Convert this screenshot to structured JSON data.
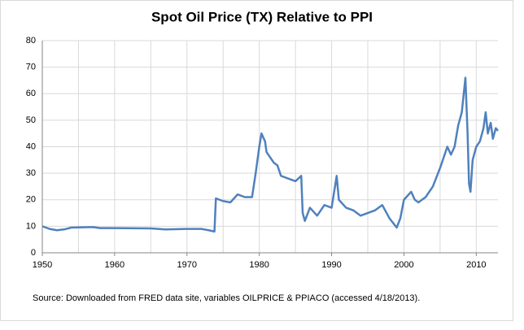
{
  "chart_data": {
    "type": "line",
    "title": "Spot Oil Price (TX) Relative to PPI",
    "source": "Source:  Downloaded from FRED data site, variables OILPRICE & PPIACO (accessed 4/18/2013).",
    "series": [
      {
        "color": "#4f81bd",
        "x": [
          1950,
          1951,
          1952,
          1953,
          1954,
          1957,
          1958,
          1960,
          1965,
          1967,
          1970,
          1972,
          1973,
          1973.8,
          1974,
          1975,
          1976,
          1977,
          1978,
          1979,
          1979.5,
          1980,
          1980.3,
          1980.8,
          1981,
          1981.5,
          1982,
          1982.5,
          1983,
          1984,
          1985,
          1985.8,
          1986,
          1986.3,
          1987,
          1988,
          1988.5,
          1989,
          1990,
          1990.7,
          1991,
          1992,
          1993,
          1994,
          1995,
          1996,
          1997,
          1998,
          1999,
          1999.5,
          2000,
          2001,
          2001.5,
          2002,
          2003,
          2004,
          2005,
          2006,
          2006.5,
          2007,
          2007.5,
          2008,
          2008.5,
          2008.8,
          2009,
          2009.2,
          2009.5,
          2010,
          2010.5,
          2011,
          2011.3,
          2011.6,
          2012,
          2012.3,
          2012.7,
          2013
        ],
        "values": [
          10,
          9,
          8.5,
          8.8,
          9.5,
          9.7,
          9.3,
          9.3,
          9.2,
          8.8,
          9,
          9,
          8.5,
          8,
          20.5,
          19.5,
          19,
          22,
          21,
          21,
          30,
          40,
          45,
          42,
          38,
          36,
          34,
          33,
          29,
          28,
          27,
          29,
          15,
          12,
          17,
          14,
          16,
          18,
          17,
          29,
          20,
          17,
          16,
          14,
          15,
          16,
          18,
          13,
          9.5,
          13,
          20,
          23,
          20,
          19,
          21,
          25,
          32,
          40,
          37,
          40,
          48,
          53,
          66,
          45,
          26,
          23,
          35,
          40,
          42,
          47,
          53,
          45,
          49,
          43,
          47,
          46
        ]
      }
    ],
    "xlim": [
      1950,
      2013
    ],
    "xticks": [
      1950,
      1960,
      1970,
      1980,
      1990,
      2000,
      2010
    ],
    "xgrid": [
      1955,
      1960,
      1965,
      1970,
      1975,
      1980,
      1985,
      1990,
      1995,
      2000,
      2005,
      2010
    ],
    "ylim": [
      0,
      80
    ],
    "yticks": [
      0,
      10,
      20,
      30,
      40,
      50,
      60,
      70,
      80
    ],
    "grid": true
  }
}
